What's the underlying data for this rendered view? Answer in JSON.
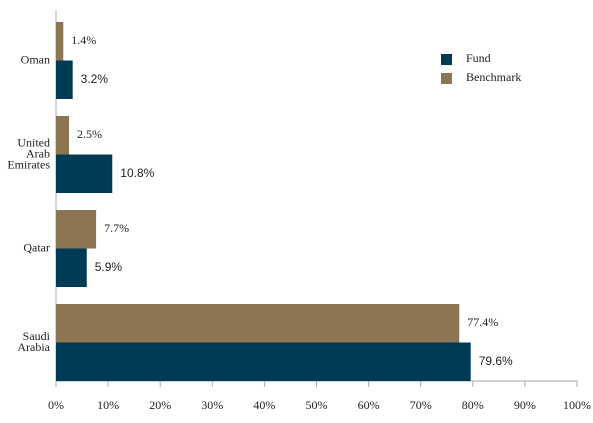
{
  "chart_data": {
    "type": "bar",
    "orientation": "horizontal",
    "categories": [
      "Oman",
      "United Arab Emirates",
      "Qatar",
      "Saudi Arabia"
    ],
    "series": [
      {
        "name": "Fund",
        "color": "#003b55",
        "values": [
          3.2,
          10.8,
          5.9,
          79.6
        ],
        "value_labels": [
          "3.2%",
          "10.8%",
          "5.9%",
          "79.6%"
        ]
      },
      {
        "name": "Benchmark",
        "color": "#8c7552",
        "values": [
          1.4,
          2.5,
          7.7,
          77.4
        ],
        "value_labels": [
          "1.4%",
          "2.5%",
          "7.7%",
          "77.4%"
        ]
      }
    ],
    "xlim": [
      0,
      100
    ],
    "xticks": [
      {
        "value": 0,
        "label": "0%"
      },
      {
        "value": 10,
        "label": "10%"
      },
      {
        "value": 20,
        "label": "20%"
      },
      {
        "value": 30,
        "label": "30%"
      },
      {
        "value": 40,
        "label": "40%"
      },
      {
        "value": 50,
        "label": "50%"
      },
      {
        "value": 60,
        "label": "60%"
      },
      {
        "value": 70,
        "label": "70%"
      },
      {
        "value": 80,
        "label": "80%"
      },
      {
        "value": 90,
        "label": "90%"
      },
      {
        "value": 100,
        "label": "100%"
      }
    ],
    "legend": "upper right"
  }
}
